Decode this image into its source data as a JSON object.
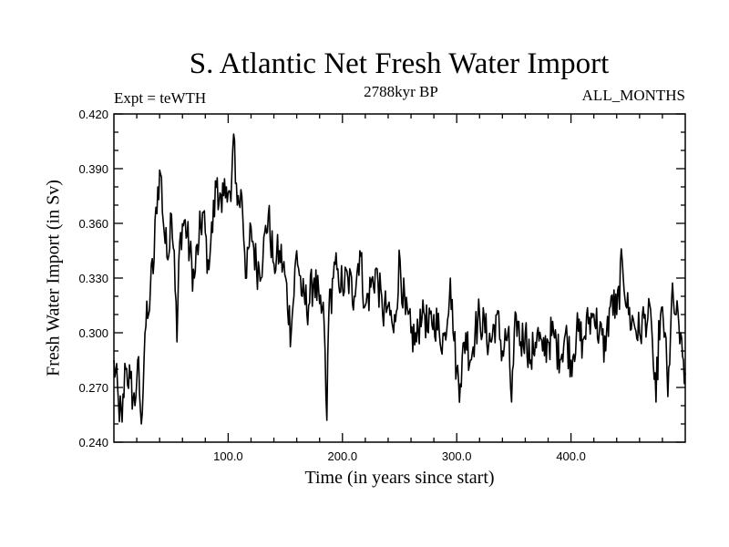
{
  "chart_data": {
    "type": "line",
    "title": "S. Atlantic Net Fresh Water Import",
    "subtitle": "2788kyr BP",
    "left_label": "Expt = teWTH",
    "right_label": "ALL_MONTHS",
    "xlabel": "Time (in years since start)",
    "ylabel": "Fresh Water Import (in Sv)",
    "xlim": [
      0,
      500
    ],
    "ylim": [
      0.24,
      0.42
    ],
    "xticks": [
      100,
      200,
      300,
      400
    ],
    "xtick_labels": [
      "100.0",
      "200.0",
      "300.0",
      "400.0"
    ],
    "yticks": [
      0.24,
      0.27,
      0.3,
      0.33,
      0.36,
      0.39,
      0.42
    ],
    "ytick_labels": [
      "0.240",
      "0.270",
      "0.300",
      "0.330",
      "0.360",
      "0.390",
      "0.420"
    ],
    "anchors": [
      [
        0,
        0.285
      ],
      [
        4,
        0.262
      ],
      [
        7,
        0.251
      ],
      [
        10,
        0.28
      ],
      [
        14,
        0.275
      ],
      [
        18,
        0.26
      ],
      [
        21,
        0.285
      ],
      [
        24,
        0.25
      ],
      [
        27,
        0.3
      ],
      [
        30,
        0.31
      ],
      [
        32,
        0.325
      ],
      [
        35,
        0.34
      ],
      [
        38,
        0.38
      ],
      [
        41,
        0.387
      ],
      [
        44,
        0.355
      ],
      [
        47,
        0.34
      ],
      [
        50,
        0.365
      ],
      [
        53,
        0.345
      ],
      [
        55,
        0.295
      ],
      [
        58,
        0.355
      ],
      [
        62,
        0.362
      ],
      [
        66,
        0.345
      ],
      [
        70,
        0.33
      ],
      [
        74,
        0.35
      ],
      [
        78,
        0.366
      ],
      [
        82,
        0.34
      ],
      [
        86,
        0.355
      ],
      [
        90,
        0.385
      ],
      [
        94,
        0.366
      ],
      [
        98,
        0.38
      ],
      [
        102,
        0.372
      ],
      [
        105,
        0.409
      ],
      [
        108,
        0.37
      ],
      [
        112,
        0.375
      ],
      [
        116,
        0.33
      ],
      [
        120,
        0.358
      ],
      [
        125,
        0.335
      ],
      [
        130,
        0.34
      ],
      [
        135,
        0.365
      ],
      [
        140,
        0.338
      ],
      [
        145,
        0.345
      ],
      [
        150,
        0.33
      ],
      [
        155,
        0.3
      ],
      [
        160,
        0.345
      ],
      [
        165,
        0.32
      ],
      [
        170,
        0.315
      ],
      [
        175,
        0.33
      ],
      [
        180,
        0.316
      ],
      [
        184,
        0.305
      ],
      [
        186,
        0.252
      ],
      [
        188,
        0.31
      ],
      [
        192,
        0.33
      ],
      [
        196,
        0.335
      ],
      [
        200,
        0.325
      ],
      [
        205,
        0.33
      ],
      [
        210,
        0.32
      ],
      [
        215,
        0.345
      ],
      [
        220,
        0.315
      ],
      [
        225,
        0.325
      ],
      [
        230,
        0.335
      ],
      [
        235,
        0.31
      ],
      [
        240,
        0.315
      ],
      [
        245,
        0.3
      ],
      [
        250,
        0.34
      ],
      [
        255,
        0.31
      ],
      [
        260,
        0.3
      ],
      [
        265,
        0.295
      ],
      [
        270,
        0.318
      ],
      [
        275,
        0.3
      ],
      [
        280,
        0.31
      ],
      [
        285,
        0.3
      ],
      [
        290,
        0.296
      ],
      [
        294,
        0.33
      ],
      [
        297,
        0.3
      ],
      [
        300,
        0.28
      ],
      [
        303,
        0.272
      ],
      [
        308,
        0.3
      ],
      [
        312,
        0.285
      ],
      [
        316,
        0.3
      ],
      [
        320,
        0.31
      ],
      [
        325,
        0.3
      ],
      [
        330,
        0.295
      ],
      [
        335,
        0.31
      ],
      [
        340,
        0.29
      ],
      [
        345,
        0.3
      ],
      [
        348,
        0.262
      ],
      [
        352,
        0.31
      ],
      [
        356,
        0.295
      ],
      [
        360,
        0.3
      ],
      [
        365,
        0.285
      ],
      [
        370,
        0.3
      ],
      [
        375,
        0.29
      ],
      [
        380,
        0.295
      ],
      [
        385,
        0.3
      ],
      [
        390,
        0.285
      ],
      [
        395,
        0.3
      ],
      [
        400,
        0.285
      ],
      [
        405,
        0.3
      ],
      [
        410,
        0.296
      ],
      [
        415,
        0.305
      ],
      [
        420,
        0.31
      ],
      [
        425,
        0.3
      ],
      [
        430,
        0.29
      ],
      [
        435,
        0.32
      ],
      [
        440,
        0.31
      ],
      [
        445,
        0.34
      ],
      [
        450,
        0.31
      ],
      [
        455,
        0.305
      ],
      [
        460,
        0.3
      ],
      [
        465,
        0.31
      ],
      [
        470,
        0.305
      ],
      [
        474,
        0.262
      ],
      [
        478,
        0.31
      ],
      [
        482,
        0.3
      ],
      [
        485,
        0.265
      ],
      [
        488,
        0.318
      ],
      [
        492,
        0.31
      ],
      [
        496,
        0.3
      ],
      [
        498,
        0.285
      ],
      [
        500,
        0.278
      ]
    ],
    "noise_amplitude": 0.012,
    "sample_step": 0.8
  }
}
